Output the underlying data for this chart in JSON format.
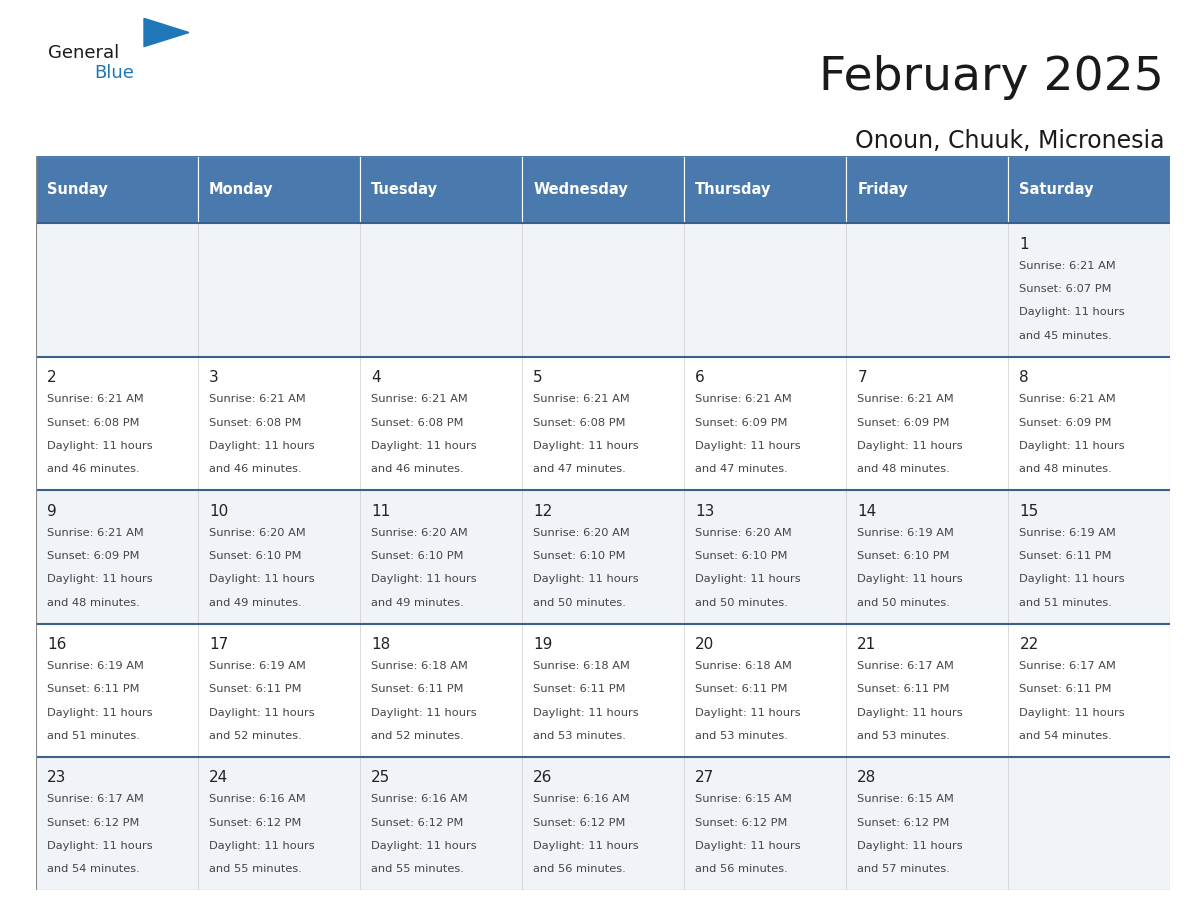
{
  "title": "February 2025",
  "subtitle": "Onoun, Chuuk, Micronesia",
  "days_of_week": [
    "Sunday",
    "Monday",
    "Tuesday",
    "Wednesday",
    "Thursday",
    "Friday",
    "Saturday"
  ],
  "header_bg": "#4a7aad",
  "header_text_color": "#ffffff",
  "cell_bg_light": "#f0f4f8",
  "cell_bg_white": "#ffffff",
  "cell_border_color": "#3a6090",
  "day_num_color": "#222222",
  "info_text_color": "#444444",
  "title_color": "#1a1a1a",
  "subtitle_color": "#1a1a1a",
  "logo_black": "#1a1a1a",
  "logo_blue": "#2077b8",
  "logo_triangle_color": "#2077b8",
  "calendar_data": [
    {
      "day": 1,
      "col": 6,
      "row": 0,
      "sunrise": "6:21 AM",
      "sunset": "6:07 PM",
      "daylight": "11 hours and 45 minutes."
    },
    {
      "day": 2,
      "col": 0,
      "row": 1,
      "sunrise": "6:21 AM",
      "sunset": "6:08 PM",
      "daylight": "11 hours and 46 minutes."
    },
    {
      "day": 3,
      "col": 1,
      "row": 1,
      "sunrise": "6:21 AM",
      "sunset": "6:08 PM",
      "daylight": "11 hours and 46 minutes."
    },
    {
      "day": 4,
      "col": 2,
      "row": 1,
      "sunrise": "6:21 AM",
      "sunset": "6:08 PM",
      "daylight": "11 hours and 46 minutes."
    },
    {
      "day": 5,
      "col": 3,
      "row": 1,
      "sunrise": "6:21 AM",
      "sunset": "6:08 PM",
      "daylight": "11 hours and 47 minutes."
    },
    {
      "day": 6,
      "col": 4,
      "row": 1,
      "sunrise": "6:21 AM",
      "sunset": "6:09 PM",
      "daylight": "11 hours and 47 minutes."
    },
    {
      "day": 7,
      "col": 5,
      "row": 1,
      "sunrise": "6:21 AM",
      "sunset": "6:09 PM",
      "daylight": "11 hours and 48 minutes."
    },
    {
      "day": 8,
      "col": 6,
      "row": 1,
      "sunrise": "6:21 AM",
      "sunset": "6:09 PM",
      "daylight": "11 hours and 48 minutes."
    },
    {
      "day": 9,
      "col": 0,
      "row": 2,
      "sunrise": "6:21 AM",
      "sunset": "6:09 PM",
      "daylight": "11 hours and 48 minutes."
    },
    {
      "day": 10,
      "col": 1,
      "row": 2,
      "sunrise": "6:20 AM",
      "sunset": "6:10 PM",
      "daylight": "11 hours and 49 minutes."
    },
    {
      "day": 11,
      "col": 2,
      "row": 2,
      "sunrise": "6:20 AM",
      "sunset": "6:10 PM",
      "daylight": "11 hours and 49 minutes."
    },
    {
      "day": 12,
      "col": 3,
      "row": 2,
      "sunrise": "6:20 AM",
      "sunset": "6:10 PM",
      "daylight": "11 hours and 50 minutes."
    },
    {
      "day": 13,
      "col": 4,
      "row": 2,
      "sunrise": "6:20 AM",
      "sunset": "6:10 PM",
      "daylight": "11 hours and 50 minutes."
    },
    {
      "day": 14,
      "col": 5,
      "row": 2,
      "sunrise": "6:19 AM",
      "sunset": "6:10 PM",
      "daylight": "11 hours and 50 minutes."
    },
    {
      "day": 15,
      "col": 6,
      "row": 2,
      "sunrise": "6:19 AM",
      "sunset": "6:11 PM",
      "daylight": "11 hours and 51 minutes."
    },
    {
      "day": 16,
      "col": 0,
      "row": 3,
      "sunrise": "6:19 AM",
      "sunset": "6:11 PM",
      "daylight": "11 hours and 51 minutes."
    },
    {
      "day": 17,
      "col": 1,
      "row": 3,
      "sunrise": "6:19 AM",
      "sunset": "6:11 PM",
      "daylight": "11 hours and 52 minutes."
    },
    {
      "day": 18,
      "col": 2,
      "row": 3,
      "sunrise": "6:18 AM",
      "sunset": "6:11 PM",
      "daylight": "11 hours and 52 minutes."
    },
    {
      "day": 19,
      "col": 3,
      "row": 3,
      "sunrise": "6:18 AM",
      "sunset": "6:11 PM",
      "daylight": "11 hours and 53 minutes."
    },
    {
      "day": 20,
      "col": 4,
      "row": 3,
      "sunrise": "6:18 AM",
      "sunset": "6:11 PM",
      "daylight": "11 hours and 53 minutes."
    },
    {
      "day": 21,
      "col": 5,
      "row": 3,
      "sunrise": "6:17 AM",
      "sunset": "6:11 PM",
      "daylight": "11 hours and 53 minutes."
    },
    {
      "day": 22,
      "col": 6,
      "row": 3,
      "sunrise": "6:17 AM",
      "sunset": "6:11 PM",
      "daylight": "11 hours and 54 minutes."
    },
    {
      "day": 23,
      "col": 0,
      "row": 4,
      "sunrise": "6:17 AM",
      "sunset": "6:12 PM",
      "daylight": "11 hours and 54 minutes."
    },
    {
      "day": 24,
      "col": 1,
      "row": 4,
      "sunrise": "6:16 AM",
      "sunset": "6:12 PM",
      "daylight": "11 hours and 55 minutes."
    },
    {
      "day": 25,
      "col": 2,
      "row": 4,
      "sunrise": "6:16 AM",
      "sunset": "6:12 PM",
      "daylight": "11 hours and 55 minutes."
    },
    {
      "day": 26,
      "col": 3,
      "row": 4,
      "sunrise": "6:16 AM",
      "sunset": "6:12 PM",
      "daylight": "11 hours and 56 minutes."
    },
    {
      "day": 27,
      "col": 4,
      "row": 4,
      "sunrise": "6:15 AM",
      "sunset": "6:12 PM",
      "daylight": "11 hours and 56 minutes."
    },
    {
      "day": 28,
      "col": 5,
      "row": 4,
      "sunrise": "6:15 AM",
      "sunset": "6:12 PM",
      "daylight": "11 hours and 57 minutes."
    }
  ]
}
